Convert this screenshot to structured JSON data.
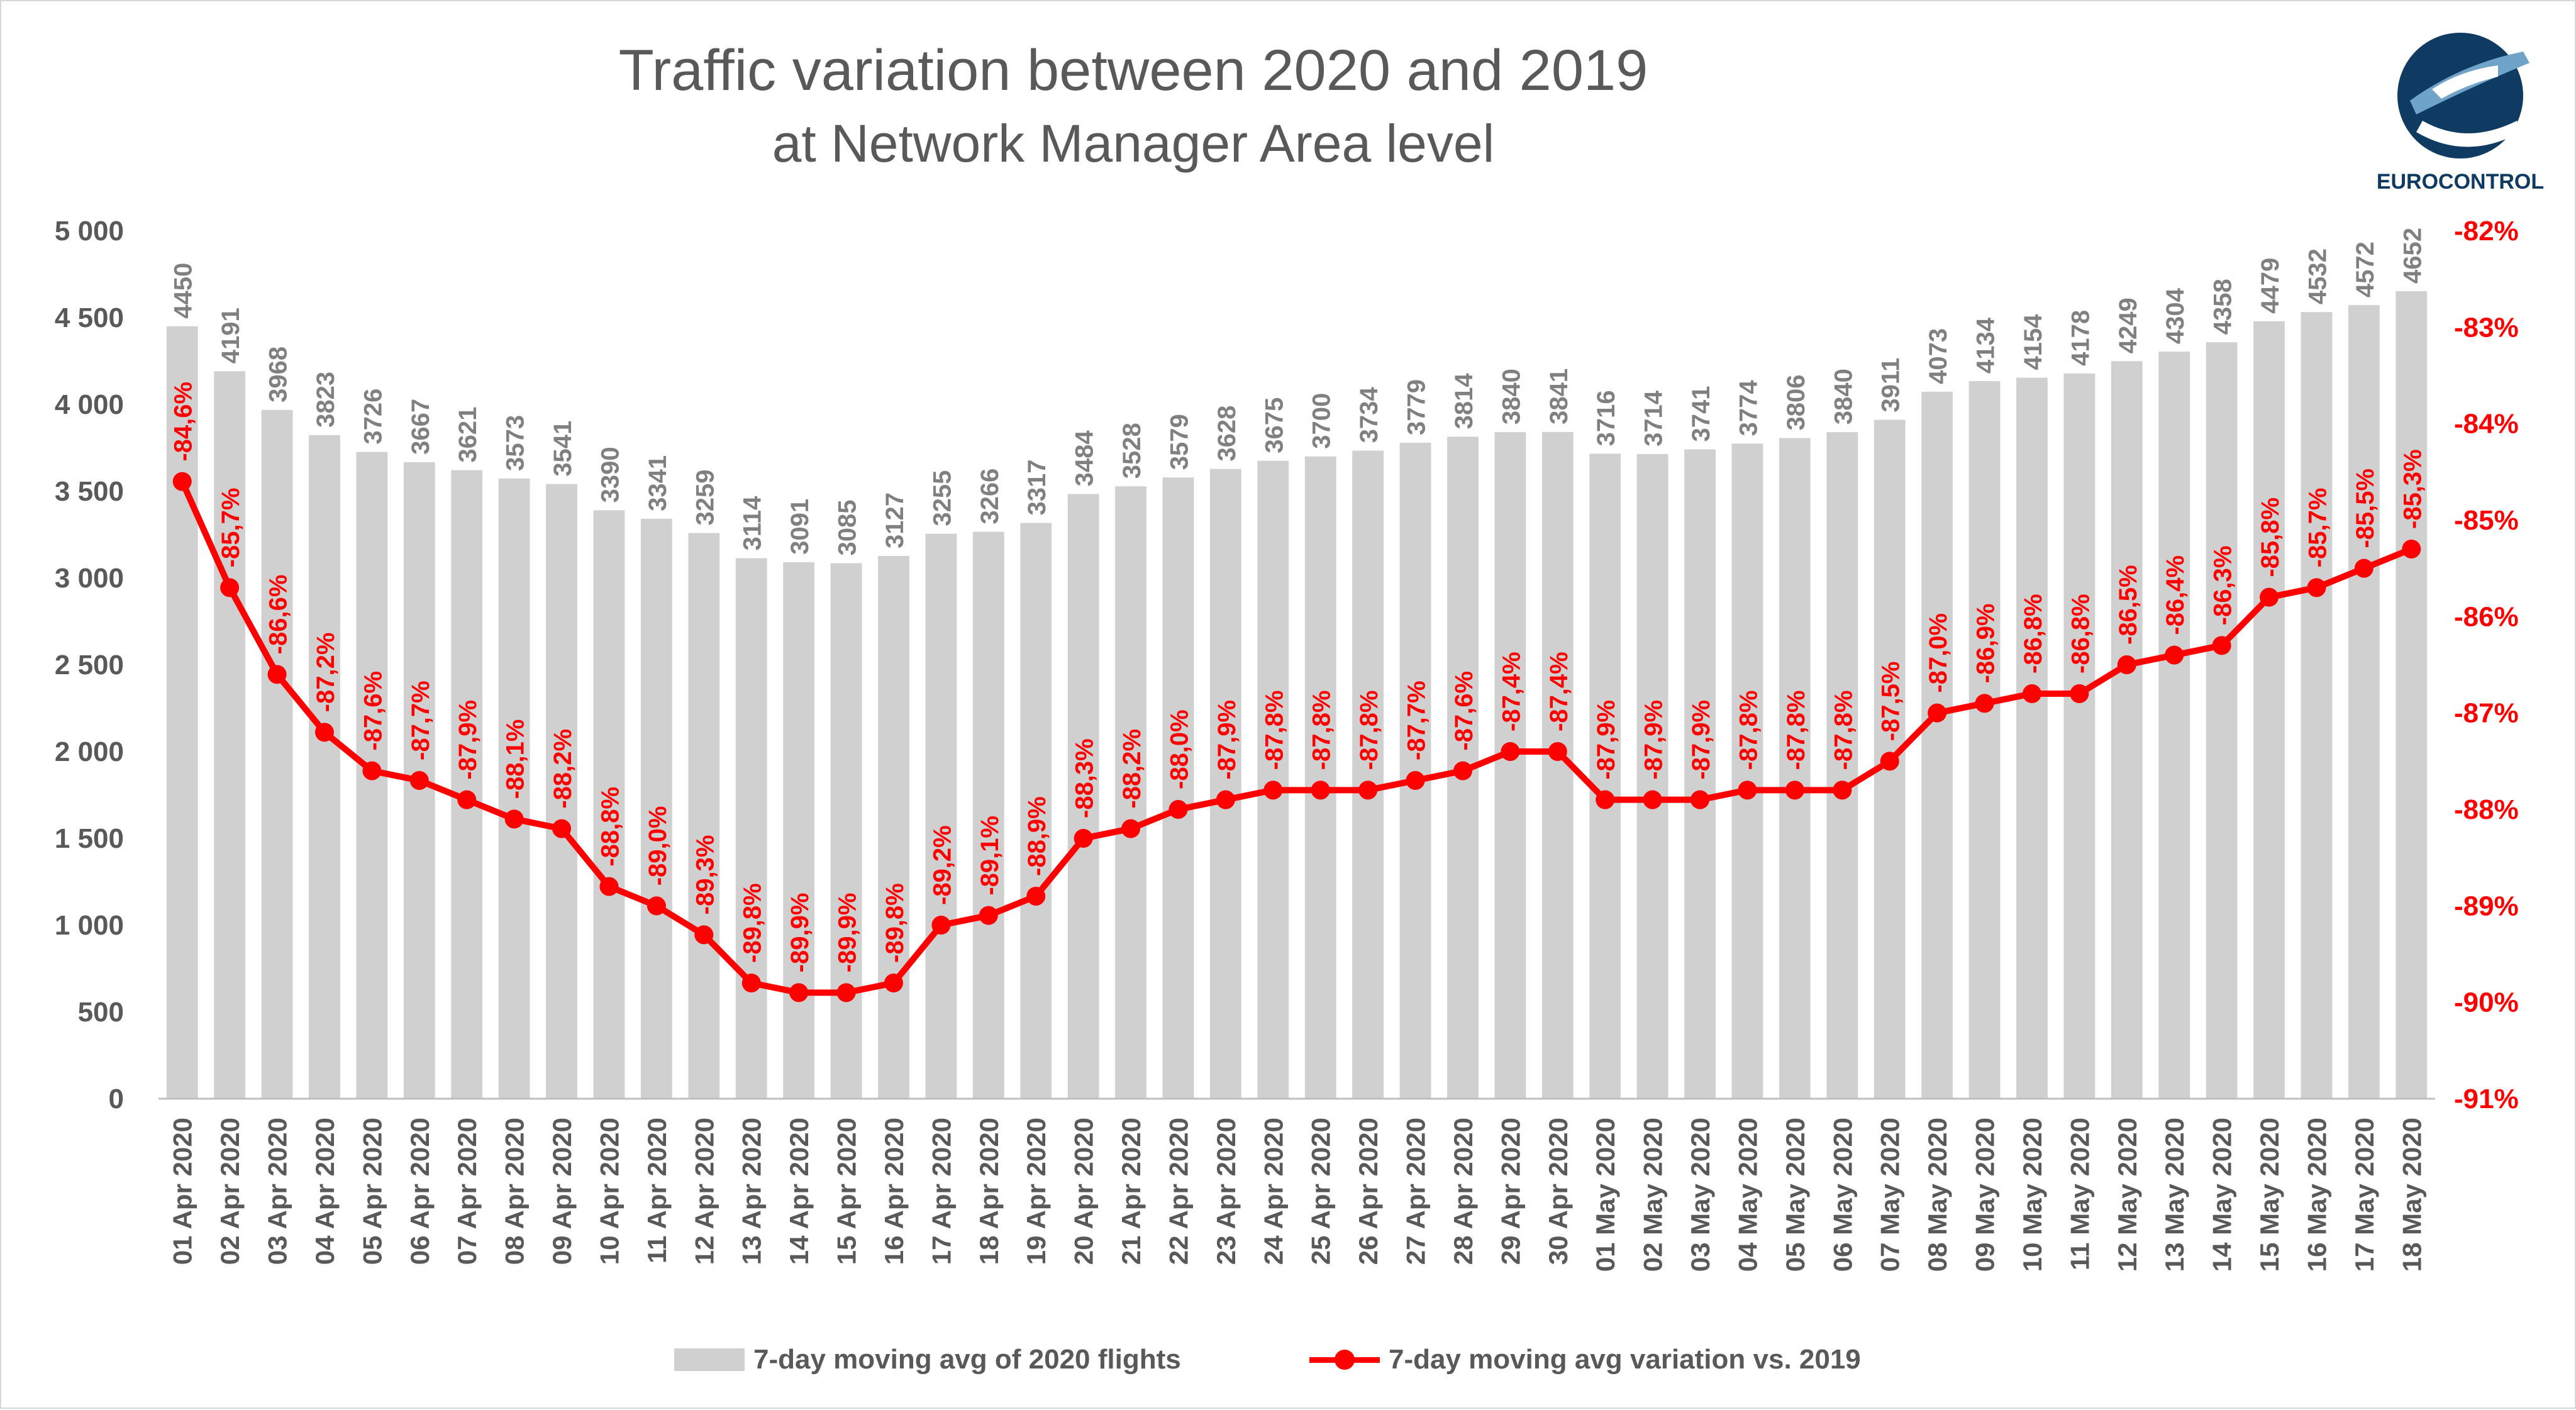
{
  "title": "Traffic variation between 2020 and 2019",
  "subtitle": "at Network Manager Area level",
  "logo_text": "EUROCONTROL",
  "colors": {
    "bars": "#d0d0d0",
    "bar_labels": "#808080",
    "line": "#ff0000",
    "axis_text": "#595959",
    "logo_blue": "#0f3b63",
    "logo_light": "#6fa3c8"
  },
  "chart_data": {
    "type": "bar",
    "categories": [
      "01 Apr 2020",
      "02 Apr 2020",
      "03 Apr 2020",
      "04 Apr 2020",
      "05 Apr 2020",
      "06 Apr 2020",
      "07 Apr 2020",
      "08 Apr 2020",
      "09 Apr 2020",
      "10 Apr 2020",
      "11 Apr 2020",
      "12 Apr 2020",
      "13 Apr 2020",
      "14 Apr 2020",
      "15 Apr 2020",
      "16 Apr 2020",
      "17 Apr 2020",
      "18 Apr 2020",
      "19 Apr 2020",
      "20 Apr 2020",
      "21 Apr 2020",
      "22 Apr 2020",
      "23 Apr 2020",
      "24 Apr 2020",
      "25 Apr 2020",
      "26 Apr 2020",
      "27 Apr 2020",
      "28 Apr 2020",
      "29 Apr 2020",
      "30 Apr 2020",
      "01 May 2020",
      "02 May 2020",
      "03 May 2020",
      "04 May 2020",
      "05 May 2020",
      "06 May 2020",
      "07 May 2020",
      "08 May 2020",
      "09 May 2020",
      "10 May 2020",
      "11 May 2020",
      "12 May 2020",
      "13 May 2020",
      "14 May 2020",
      "15 May 2020",
      "16 May 2020",
      "17 May 2020",
      "18 May 2020"
    ],
    "series": [
      {
        "name": "7-day moving avg of 2020 flights",
        "type": "bar",
        "axis": "left",
        "values": [
          4450,
          4191,
          3968,
          3823,
          3726,
          3667,
          3621,
          3573,
          3541,
          3390,
          3341,
          3259,
          3114,
          3091,
          3085,
          3127,
          3255,
          3266,
          3317,
          3484,
          3528,
          3579,
          3628,
          3675,
          3700,
          3734,
          3779,
          3814,
          3840,
          3841,
          3716,
          3714,
          3741,
          3774,
          3806,
          3840,
          3911,
          4073,
          4134,
          4154,
          4178,
          4249,
          4304,
          4358,
          4479,
          4532,
          4572,
          4652
        ],
        "labels": [
          "4450",
          "4191",
          "3968",
          "3823",
          "3726",
          "3667",
          "3621",
          "3573",
          "3541",
          "3390",
          "3341",
          "3259",
          "3114",
          "3091",
          "3085",
          "3127",
          "3255",
          "3266",
          "3317",
          "3484",
          "3528",
          "3579",
          "3628",
          "3675",
          "3700",
          "3734",
          "3779",
          "3814",
          "3840",
          "3841",
          "3716",
          "3714",
          "3741",
          "3774",
          "3806",
          "3840",
          "3911",
          "4073",
          "4134",
          "4154",
          "4178",
          "4249",
          "4304",
          "4358",
          "4479",
          "4532",
          "4572",
          "4652"
        ]
      },
      {
        "name": "7-day moving avg variation vs. 2019",
        "type": "line",
        "axis": "right",
        "values": [
          -84.6,
          -85.7,
          -86.6,
          -87.2,
          -87.6,
          -87.7,
          -87.9,
          -88.1,
          -88.2,
          -88.8,
          -89.0,
          -89.3,
          -89.8,
          -89.9,
          -89.9,
          -89.8,
          -89.2,
          -89.1,
          -88.9,
          -88.3,
          -88.2,
          -88.0,
          -87.9,
          -87.8,
          -87.8,
          -87.8,
          -87.7,
          -87.6,
          -87.4,
          -87.4,
          -87.9,
          -87.9,
          -87.9,
          -87.8,
          -87.8,
          -87.8,
          -87.5,
          -87.0,
          -86.9,
          -86.8,
          -86.8,
          -86.5,
          -86.4,
          -86.3,
          -85.8,
          -85.7,
          -85.5,
          -85.3
        ],
        "labels": [
          "-84,6%",
          "-85,7%",
          "-86,6%",
          "-87,2%",
          "-87,6%",
          "-87,7%",
          "-87,9%",
          "-88,1%",
          "-88,2%",
          "-88,8%",
          "-89,0%",
          "-89,3%",
          "-89,8%",
          "-89,9%",
          "-89,9%",
          "-89,8%",
          "-89,2%",
          "-89,1%",
          "-88,9%",
          "-88,3%",
          "-88,2%",
          "-88,0%",
          "-87,9%",
          "-87,8%",
          "-87,8%",
          "-87,8%",
          "-87,7%",
          "-87,6%",
          "-87,4%",
          "-87,4%",
          "-87,9%",
          "-87,9%",
          "-87,9%",
          "-87,8%",
          "-87,8%",
          "-87,8%",
          "-87,5%",
          "-87,0%",
          "-86,9%",
          "-86,8%",
          "-86,8%",
          "-86,5%",
          "-86,4%",
          "-86,3%",
          "-85,8%",
          "-85,7%",
          "-85,5%",
          "-85,3%"
        ]
      }
    ],
    "y_left": {
      "min": 0,
      "max": 5000,
      "ticks": [
        "0",
        "500",
        "1 000",
        "1 500",
        "2 000",
        "2 500",
        "3 000",
        "3 500",
        "4 000",
        "4 500",
        "5 000"
      ]
    },
    "y_right": {
      "min": -91,
      "max": -82,
      "ticks": [
        "-91%",
        "-90%",
        "-89%",
        "-88%",
        "-87%",
        "-86%",
        "-85%",
        "-84%",
        "-83%",
        "-82%"
      ]
    },
    "grid": false,
    "legend_position": "bottom"
  },
  "legend": [
    {
      "label": "7-day moving avg of 2020 flights"
    },
    {
      "label": "7-day moving avg variation vs. 2019"
    }
  ]
}
